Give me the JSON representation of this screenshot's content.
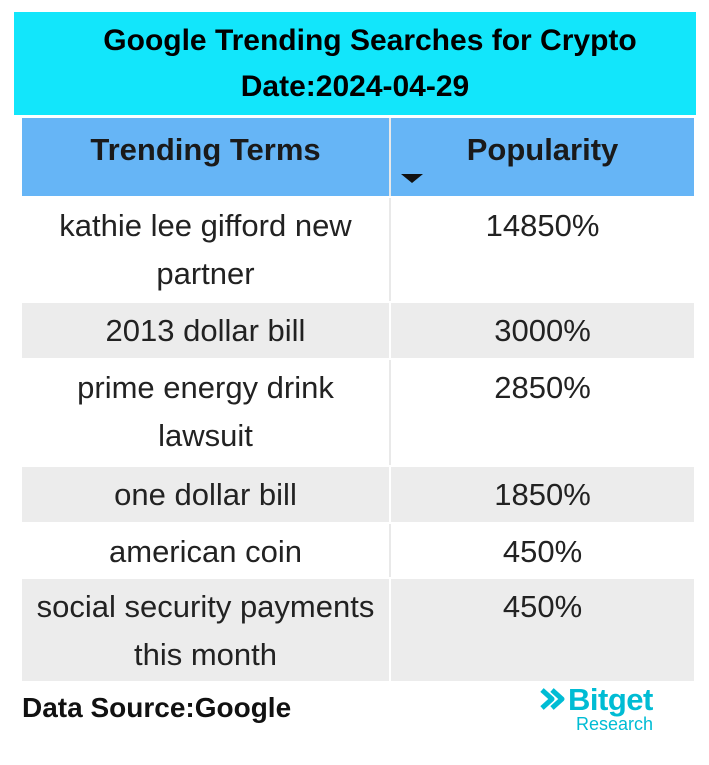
{
  "header": {
    "title": "Google Trending Searches for Crypto",
    "date": "Date:2024-04-29"
  },
  "table": {
    "columns": [
      "Trending Terms",
      "Popularity"
    ],
    "rows": [
      [
        "kathie lee gifford new partner",
        "14850%"
      ],
      [
        "2013 dollar bill",
        "3000%"
      ],
      [
        "prime energy drink lawsuit",
        "2850%"
      ],
      [
        "one dollar bill",
        "1850%"
      ],
      [
        "american coin",
        "450%"
      ],
      [
        "social security payments this month",
        "450%"
      ]
    ]
  },
  "footer": {
    "source": "Data Source:Google",
    "brand": "Bitget",
    "brand_sub": "Research"
  }
}
